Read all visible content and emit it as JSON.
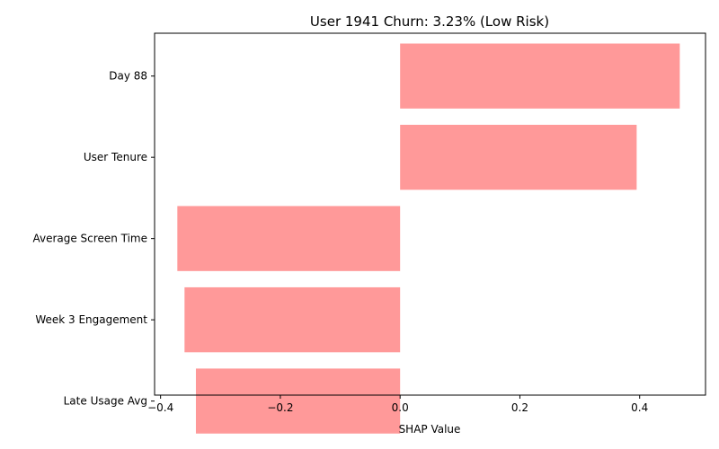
{
  "chart_data": {
    "type": "bar",
    "orientation": "horizontal",
    "title": "User 1941 Churn: 3.23% (Low Risk)",
    "xlabel": "SHAP Value",
    "ylabel": "",
    "categories": [
      "Day 88",
      "User Tenure",
      "Average Screen Time",
      "Week 3 Engagement",
      "Late Usage Avg"
    ],
    "values": [
      0.467,
      0.395,
      -0.372,
      -0.36,
      -0.341
    ],
    "xlim": [
      -0.41,
      0.51
    ],
    "xticks": [
      -0.4,
      -0.2,
      0.0,
      0.2,
      0.4
    ],
    "xtick_labels": [
      "−0.4",
      "−0.2",
      "0.0",
      "0.2",
      "0.4"
    ],
    "bar_color": "#ff9999",
    "grid": false,
    "legend": "none"
  }
}
